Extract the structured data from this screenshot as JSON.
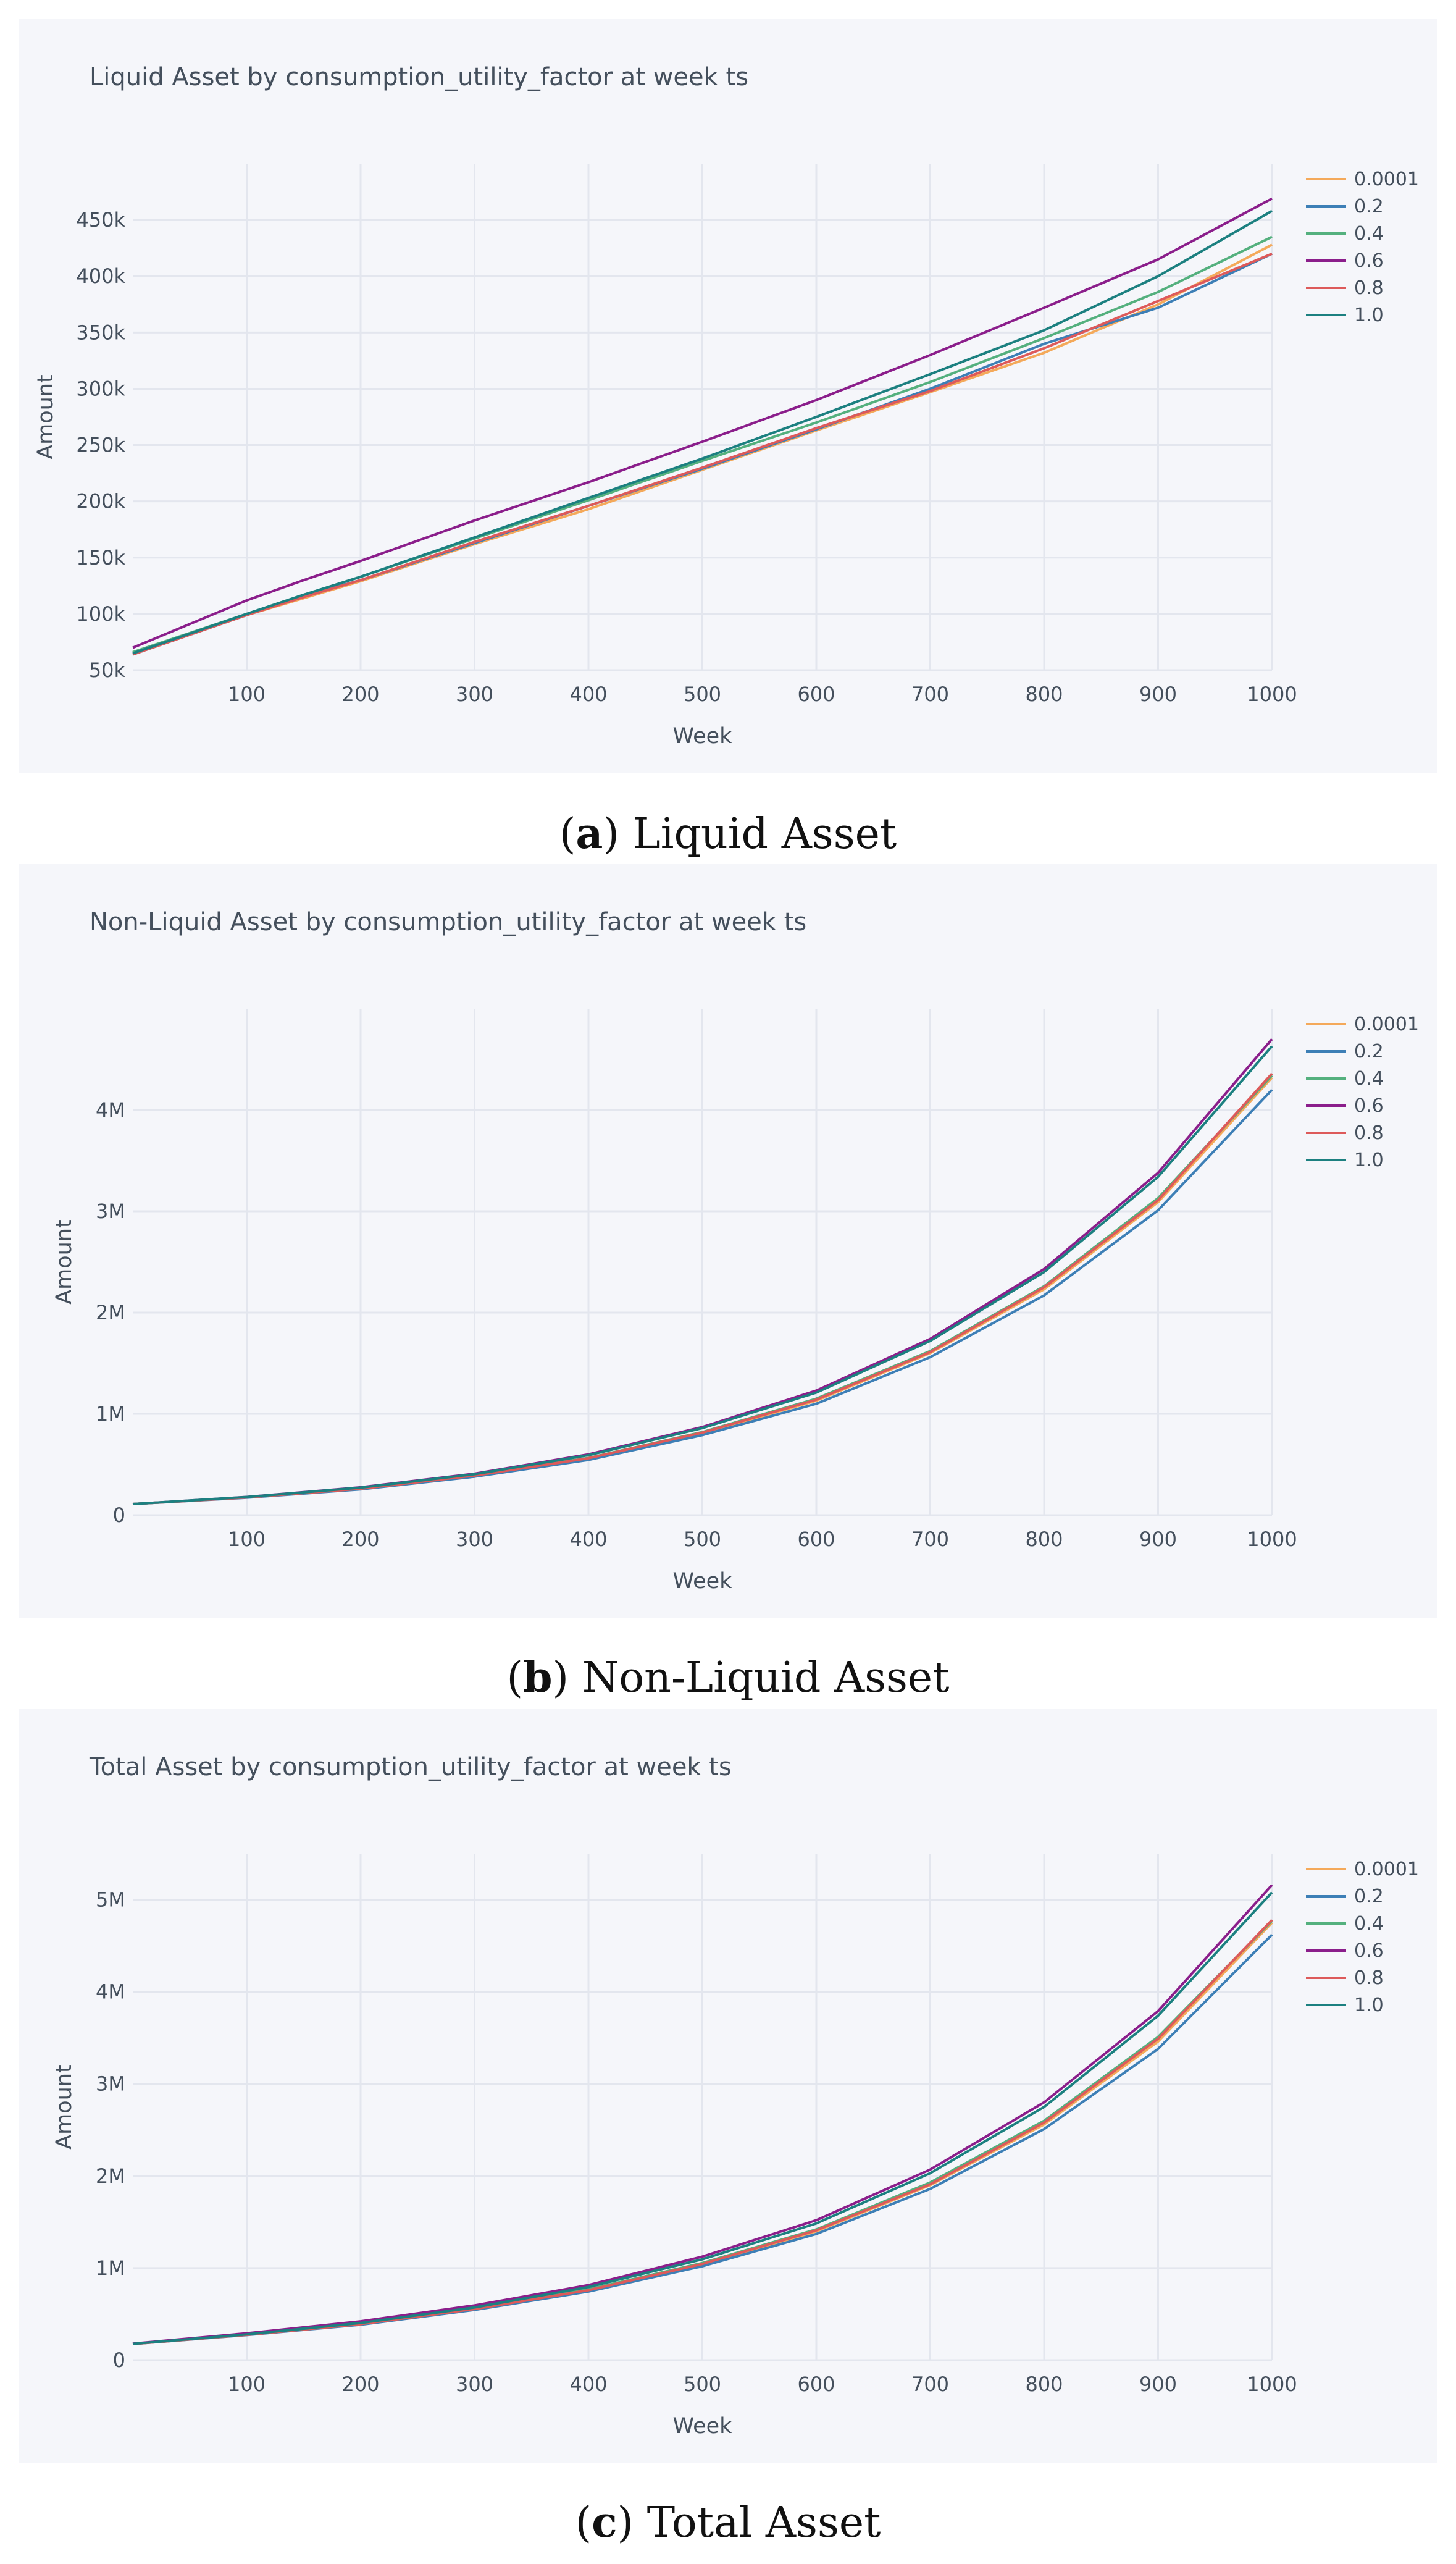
{
  "chart_data": [
    {
      "type": "line",
      "title": "Liquid Asset by consumption_utility_factor at week ts",
      "xlabel": "Week",
      "ylabel": "Amount",
      "xlim": [
        0,
        1000
      ],
      "ylim": [
        50000,
        500000
      ],
      "xticks": [
        100,
        200,
        300,
        400,
        500,
        600,
        700,
        800,
        900,
        1000
      ],
      "xtick_labels": [
        "100",
        "200",
        "300",
        "400",
        "500",
        "600",
        "700",
        "800",
        "900",
        "1000"
      ],
      "yticks": [
        50000,
        100000,
        150000,
        200000,
        250000,
        300000,
        350000,
        400000,
        450000
      ],
      "ytick_labels": [
        "50k",
        "100k",
        "150k",
        "200k",
        "250k",
        "300k",
        "350k",
        "400k",
        "450k"
      ],
      "legend_position": "right",
      "x": [
        0,
        100,
        150,
        200,
        300,
        400,
        500,
        600,
        700,
        800,
        900,
        1000
      ],
      "series": [
        {
          "name": "0.0001",
          "color": "#f4a95a",
          "values": [
            64000,
            99000,
            114000,
            129000,
            162000,
            193000,
            228000,
            263000,
            297000,
            332000,
            375000,
            428000
          ]
        },
        {
          "name": "0.2",
          "color": "#3d7fb6",
          "values": [
            64000,
            99000,
            116000,
            130000,
            163000,
            196000,
            229000,
            264000,
            300000,
            340000,
            372000,
            420000
          ]
        },
        {
          "name": "0.4",
          "color": "#54b07e",
          "values": [
            66000,
            100000,
            117000,
            133000,
            167000,
            201000,
            236000,
            270000,
            306000,
            345000,
            386000,
            435000
          ]
        },
        {
          "name": "0.6",
          "color": "#8b1e8b",
          "values": [
            70000,
            112000,
            130000,
            147000,
            183000,
            217000,
            253000,
            290000,
            330000,
            372000,
            415000,
            469000
          ]
        },
        {
          "name": "0.8",
          "color": "#dd5a5a",
          "values": [
            64000,
            99000,
            115000,
            130000,
            164000,
            196000,
            230000,
            265000,
            298000,
            336000,
            378000,
            420000
          ]
        },
        {
          "name": "1.0",
          "color": "#1c8080",
          "values": [
            65000,
            100000,
            117000,
            133000,
            168000,
            203000,
            238000,
            275000,
            313000,
            352000,
            400000,
            458000
          ]
        }
      ]
    },
    {
      "type": "line",
      "title": "Non-Liquid Asset by consumption_utility_factor at week ts",
      "xlabel": "Week",
      "ylabel": "Amount",
      "xlim": [
        0,
        1000
      ],
      "ylim": [
        0,
        5000000
      ],
      "xticks": [
        100,
        200,
        300,
        400,
        500,
        600,
        700,
        800,
        900,
        1000
      ],
      "xtick_labels": [
        "100",
        "200",
        "300",
        "400",
        "500",
        "600",
        "700",
        "800",
        "900",
        "1000"
      ],
      "yticks": [
        0,
        1000000,
        2000000,
        3000000,
        4000000
      ],
      "ytick_labels": [
        "0",
        "1M",
        "2M",
        "3M",
        "4M"
      ],
      "legend_position": "right",
      "x": [
        0,
        100,
        200,
        300,
        400,
        500,
        600,
        700,
        800,
        900,
        1000
      ],
      "series": [
        {
          "name": "0.0001",
          "color": "#f4a95a",
          "values": [
            110000,
            175000,
            260000,
            390000,
            560000,
            810000,
            1130000,
            1600000,
            2230000,
            3090000,
            4320000
          ]
        },
        {
          "name": "0.2",
          "color": "#3d7fb6",
          "values": [
            110000,
            172000,
            255000,
            380000,
            545000,
            790000,
            1100000,
            1560000,
            2170000,
            3010000,
            4200000
          ]
        },
        {
          "name": "0.4",
          "color": "#54b07e",
          "values": [
            110000,
            176000,
            262000,
            393000,
            565000,
            820000,
            1150000,
            1620000,
            2260000,
            3130000,
            4340000
          ]
        },
        {
          "name": "0.6",
          "color": "#8b1e8b",
          "values": [
            110000,
            180000,
            275000,
            410000,
            600000,
            870000,
            1230000,
            1740000,
            2430000,
            3380000,
            4700000
          ]
        },
        {
          "name": "0.8",
          "color": "#dd5a5a",
          "values": [
            110000,
            175000,
            261000,
            391000,
            562000,
            815000,
            1140000,
            1610000,
            2250000,
            3110000,
            4360000
          ]
        },
        {
          "name": "1.0",
          "color": "#1c8080",
          "values": [
            110000,
            179000,
            272000,
            405000,
            592000,
            860000,
            1210000,
            1720000,
            2400000,
            3340000,
            4630000
          ]
        }
      ]
    },
    {
      "type": "line",
      "title": "Total Asset by consumption_utility_factor at week ts",
      "xlabel": "Week",
      "ylabel": "Amount",
      "xlim": [
        0,
        1000
      ],
      "ylim": [
        0,
        5500000
      ],
      "xticks": [
        100,
        200,
        300,
        400,
        500,
        600,
        700,
        800,
        900,
        1000
      ],
      "xtick_labels": [
        "100",
        "200",
        "300",
        "400",
        "500",
        "600",
        "700",
        "800",
        "900",
        "1000"
      ],
      "yticks": [
        0,
        1000000,
        2000000,
        3000000,
        4000000,
        5000000
      ],
      "ytick_labels": [
        "0",
        "1M",
        "2M",
        "3M",
        "4M",
        "5M"
      ],
      "legend_position": "right",
      "x": [
        0,
        100,
        200,
        300,
        400,
        500,
        600,
        700,
        800,
        900,
        1000
      ],
      "series": [
        {
          "name": "0.0001",
          "color": "#f4a95a",
          "values": [
            175000,
            275000,
            390000,
            555000,
            760000,
            1040000,
            1400000,
            1900000,
            2560000,
            3460000,
            4750000
          ]
        },
        {
          "name": "0.2",
          "color": "#3d7fb6",
          "values": [
            175000,
            272000,
            385000,
            545000,
            745000,
            1020000,
            1370000,
            1860000,
            2510000,
            3380000,
            4620000
          ]
        },
        {
          "name": "0.4",
          "color": "#54b07e",
          "values": [
            176000,
            277000,
            395000,
            562000,
            768000,
            1055000,
            1420000,
            1930000,
            2600000,
            3510000,
            4770000
          ]
        },
        {
          "name": "0.6",
          "color": "#8b1e8b",
          "values": [
            180000,
            292000,
            422000,
            595000,
            815000,
            1125000,
            1520000,
            2070000,
            2800000,
            3790000,
            5160000
          ]
        },
        {
          "name": "0.8",
          "color": "#dd5a5a",
          "values": [
            175000,
            275000,
            391000,
            556000,
            760000,
            1045000,
            1410000,
            1910000,
            2580000,
            3490000,
            4780000
          ]
        },
        {
          "name": "1.0",
          "color": "#1c8080",
          "values": [
            177000,
            280000,
            404000,
            573000,
            795000,
            1095000,
            1485000,
            2030000,
            2750000,
            3740000,
            5080000
          ]
        }
      ]
    }
  ],
  "captions": [
    {
      "label": "a",
      "text": "Liquid Asset"
    },
    {
      "label": "b",
      "text": "Non-Liquid Asset"
    },
    {
      "label": "c",
      "text": "Total Asset"
    }
  ]
}
